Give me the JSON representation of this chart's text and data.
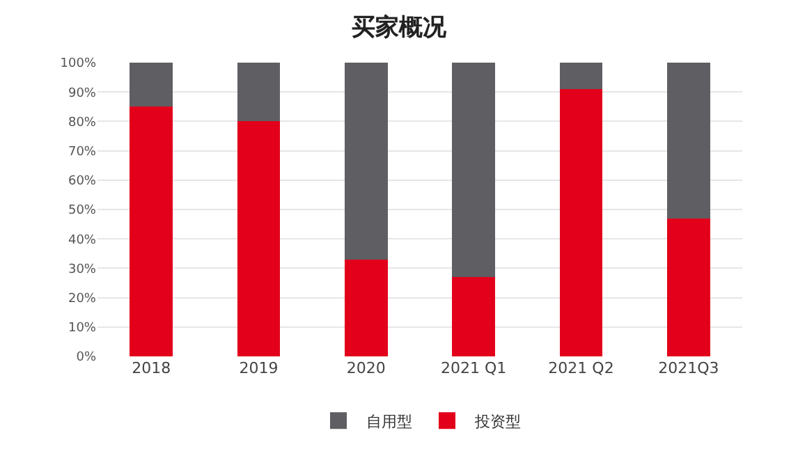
{
  "chart_data": {
    "type": "bar",
    "title": "买家概况",
    "stacked": true,
    "categories": [
      "2018",
      "2019",
      "2020",
      "2021 Q1",
      "2021 Q2",
      "2021Q3"
    ],
    "series": [
      {
        "name": "投资型",
        "color": "#e2001a",
        "values": [
          85,
          80,
          33,
          27,
          91,
          47
        ]
      },
      {
        "name": "自用型",
        "color": "#5f5f63",
        "values": [
          15,
          20,
          67,
          73,
          9,
          53
        ]
      }
    ],
    "ylim": [
      0,
      100
    ],
    "yticks": [
      {
        "value": 0,
        "label": "0%"
      },
      {
        "value": 10,
        "label": "10%"
      },
      {
        "value": 20,
        "label": "20%"
      },
      {
        "value": 30,
        "label": "30%"
      },
      {
        "value": 40,
        "label": "40%"
      },
      {
        "value": 50,
        "label": "50%"
      },
      {
        "value": 60,
        "label": "60%"
      },
      {
        "value": 70,
        "label": "70%"
      },
      {
        "value": 80,
        "label": "80%"
      },
      {
        "value": 90,
        "label": "90%"
      },
      {
        "value": 100,
        "label": "100%"
      }
    ],
    "grid": "y",
    "legend": "bottom"
  }
}
